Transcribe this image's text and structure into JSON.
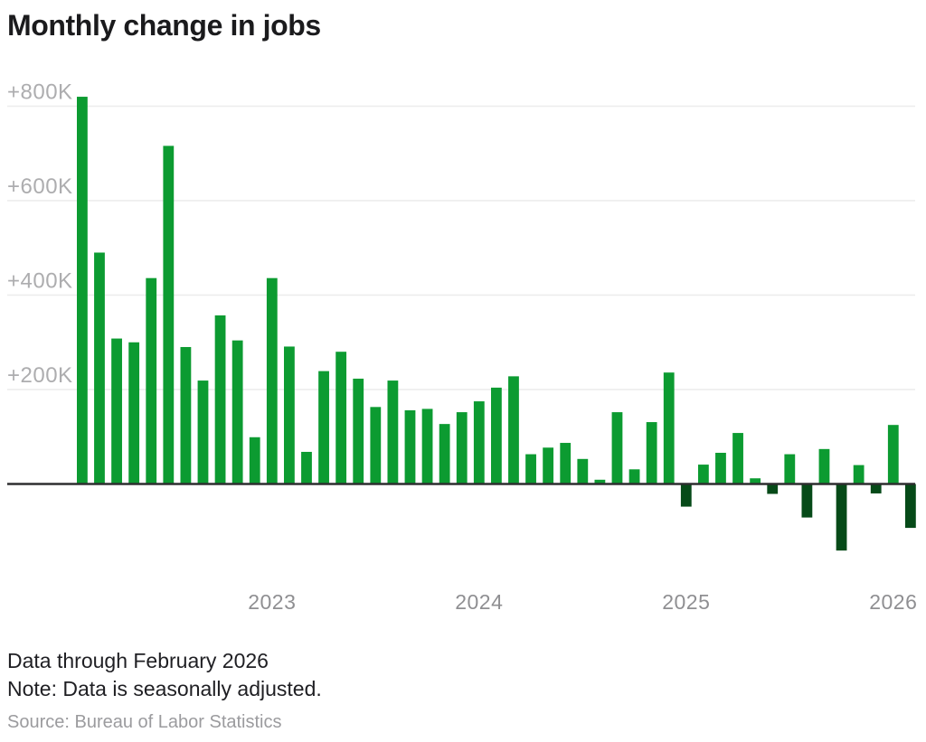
{
  "chart": {
    "title": "Monthly change in jobs"
  },
  "chart_data": {
    "type": "bar",
    "title": "Monthly change in jobs",
    "unit": "jobs, thousands",
    "categories": [
      "Feb 2022",
      "Mar 2022",
      "Apr 2022",
      "May 2022",
      "Jun 2022",
      "Jul 2022",
      "Aug 2022",
      "Sep 2022",
      "Oct 2022",
      "Nov 2022",
      "Dec 2022",
      "Jan 2023",
      "Feb 2023",
      "Mar 2023",
      "Apr 2023",
      "May 2023",
      "Jun 2023",
      "Jul 2023",
      "Aug 2023",
      "Sep 2023",
      "Oct 2023",
      "Nov 2023",
      "Dec 2023",
      "Jan 2024",
      "Feb 2024",
      "Mar 2024",
      "Apr 2024",
      "May 2024",
      "Jun 2024",
      "Jul 2024",
      "Aug 2024",
      "Sep 2024",
      "Oct 2024",
      "Nov 2024",
      "Dec 2024",
      "Jan 2025",
      "Feb 2025",
      "Mar 2025",
      "Apr 2025",
      "May 2025",
      "Jun 2025",
      "Jul 2025",
      "Aug 2025",
      "Sep 2025",
      "Oct 2025",
      "Nov 2025",
      "Dec 2025",
      "Jan 2026",
      "Feb 2026"
    ],
    "values": [
      820,
      490,
      308,
      300,
      436,
      716,
      290,
      219,
      357,
      304,
      99,
      436,
      291,
      68,
      239,
      280,
      223,
      163,
      219,
      156,
      159,
      127,
      152,
      175,
      204,
      228,
      63,
      77,
      87,
      53,
      9,
      152,
      31,
      131,
      236,
      -48,
      41,
      66,
      108,
      12,
      -21,
      63,
      -71,
      74,
      -141,
      40,
      -20,
      125,
      -93
    ],
    "y_axis": {
      "ticks": [
        {
          "value": 800,
          "label": "+800K"
        },
        {
          "value": 600,
          "label": "+600K"
        },
        {
          "value": 400,
          "label": "+400K"
        },
        {
          "value": 200,
          "label": "+200K"
        }
      ],
      "range": [
        -200,
        850
      ],
      "grid": true
    },
    "x_axis": {
      "ticks": [
        {
          "month_index": 11,
          "label": "2023"
        },
        {
          "month_index": 23,
          "label": "2024"
        },
        {
          "month_index": 35,
          "label": "2025"
        },
        {
          "month_index": 47,
          "label": "2026"
        }
      ]
    },
    "legend": "none",
    "colors": {
      "positive_bar": "#0c9b31",
      "negative_bar": "#064a18",
      "gridline": "#ececec",
      "axis_line": "#2e2e30",
      "y_tick_label": "#adadaf",
      "x_tick_label": "#8f8f92"
    }
  },
  "footer": {
    "data_through": "Data through February 2026",
    "note": "Note: Data is seasonally adjusted.",
    "source": "Source: Bureau of Labor Statistics"
  }
}
